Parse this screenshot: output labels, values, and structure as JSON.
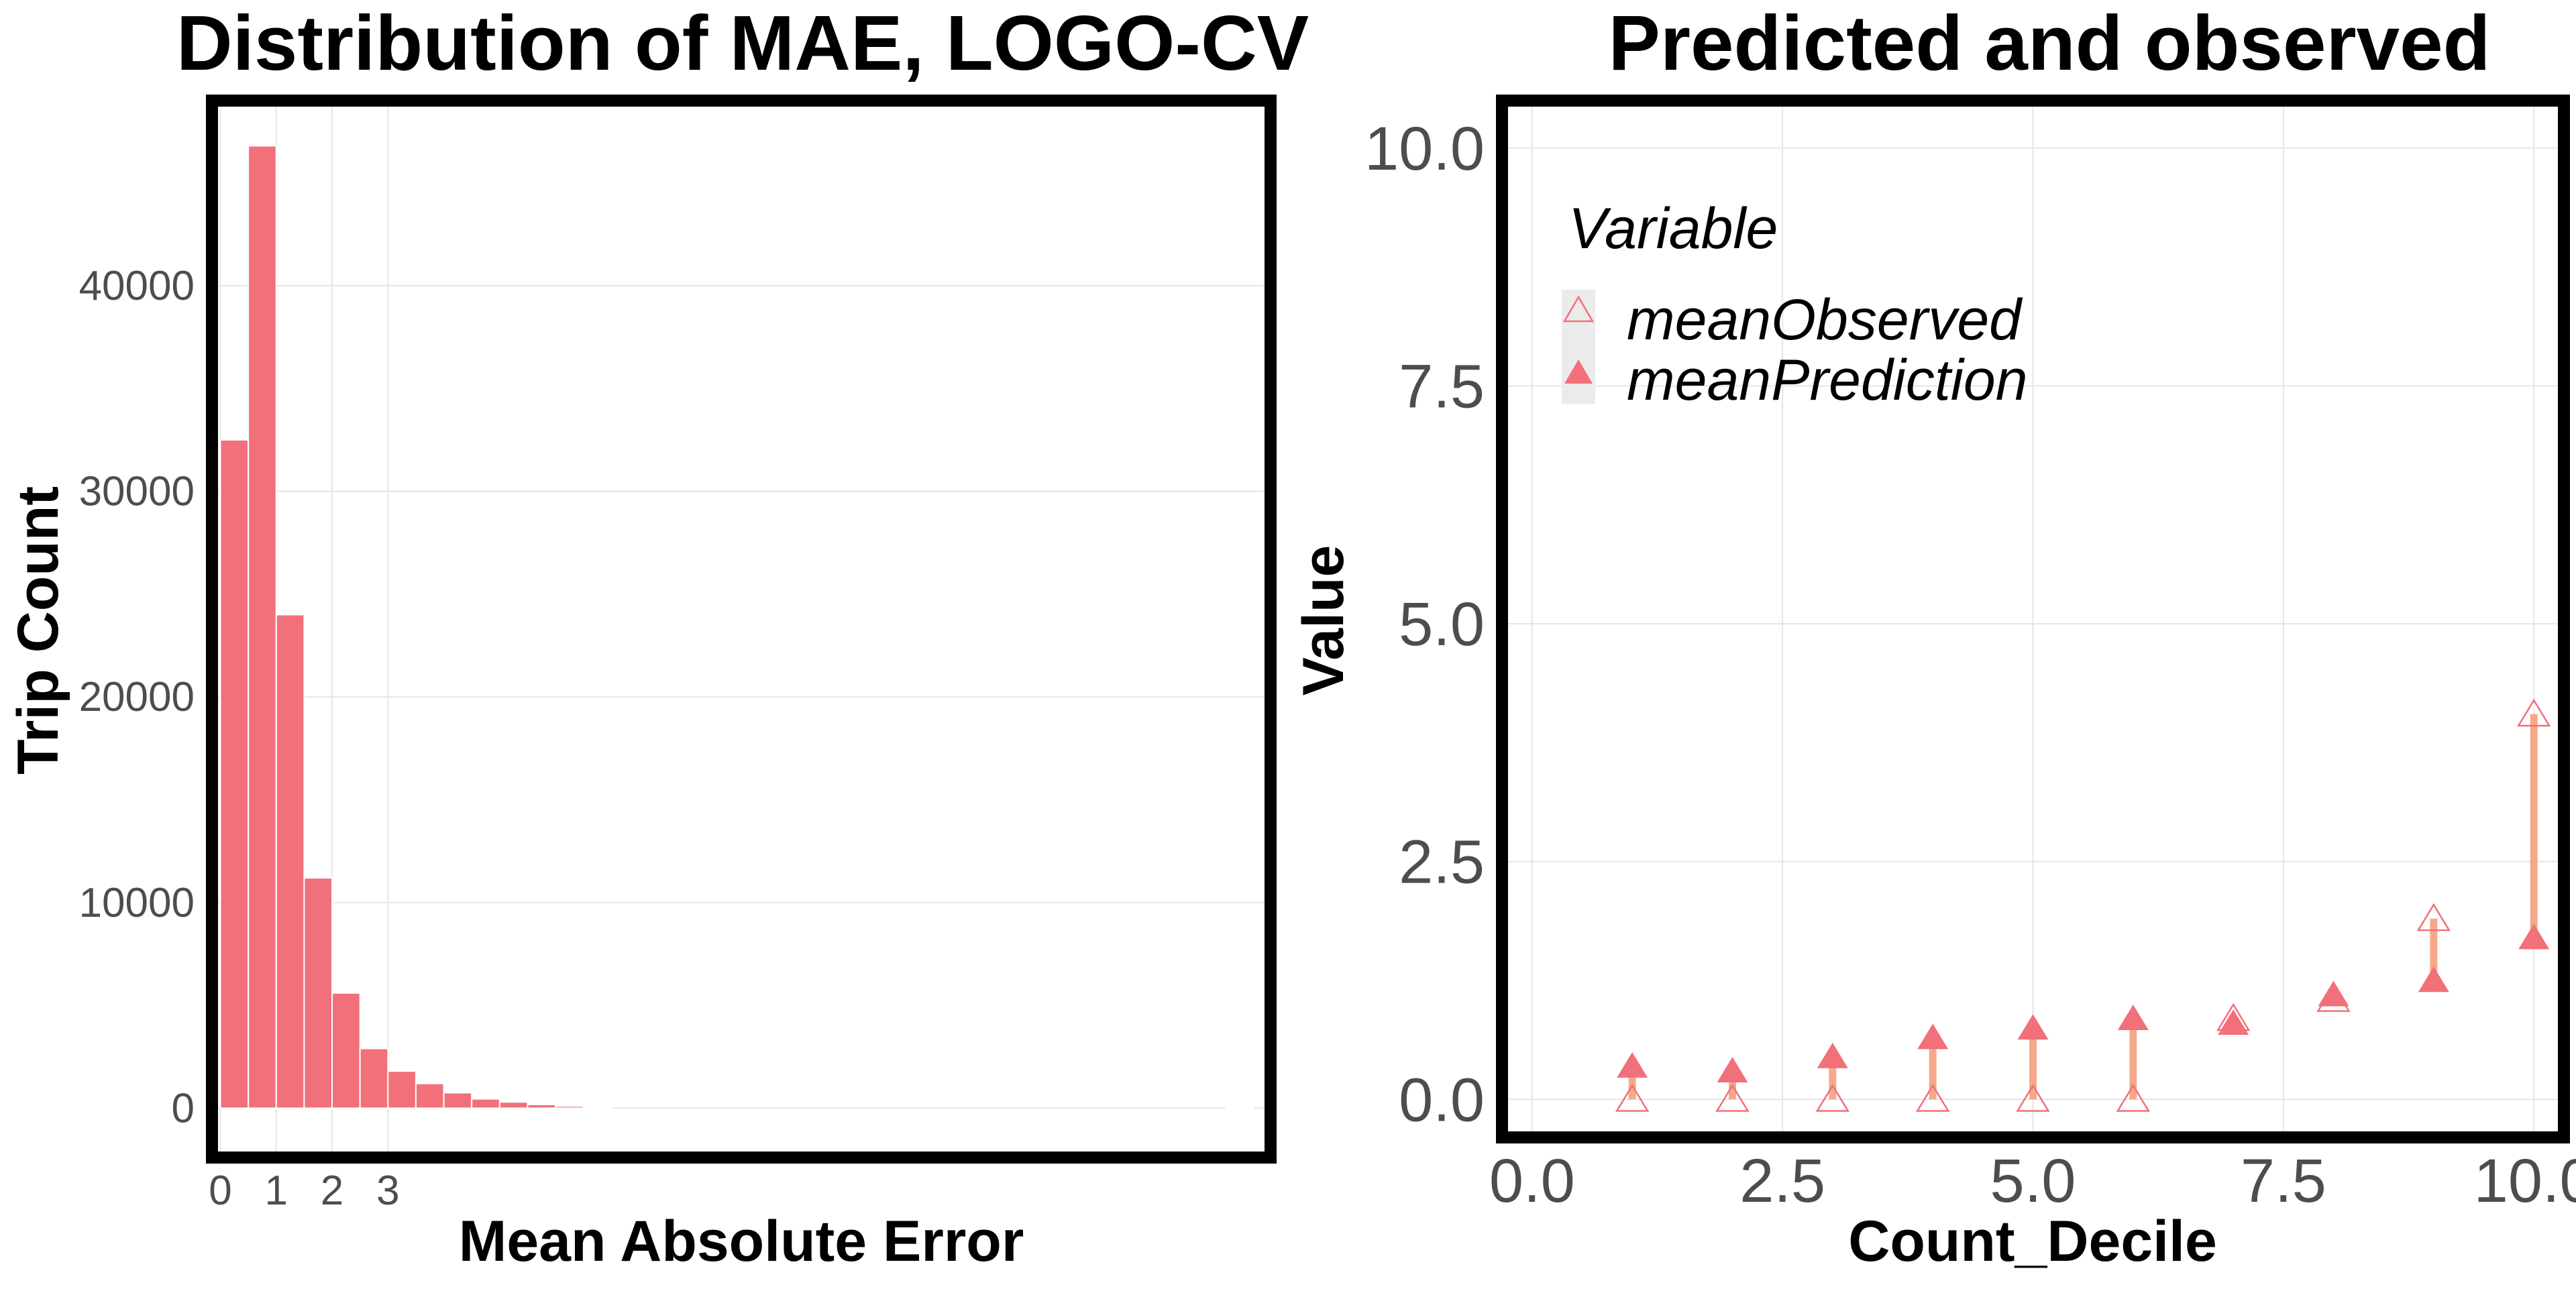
{
  "chart_data": [
    {
      "type": "bar",
      "title": "Distribution of MAE, LOGO-CV",
      "xlabel": "Mean Absolute Error",
      "ylabel": "Trip Count",
      "xlim": [
        -0.15,
        18.8
      ],
      "ylim": [
        -2400,
        49000
      ],
      "x_ticks": [
        0,
        1,
        2,
        3
      ],
      "y_ticks": [
        0,
        10000,
        20000,
        30000,
        40000
      ],
      "bin_width": 0.5,
      "bins": [
        {
          "x": 0.0,
          "count": 32500
        },
        {
          "x": 0.5,
          "count": 46800
        },
        {
          "x": 1.0,
          "count": 24000
        },
        {
          "x": 1.5,
          "count": 11200
        },
        {
          "x": 2.0,
          "count": 5600
        },
        {
          "x": 2.5,
          "count": 2900
        },
        {
          "x": 3.0,
          "count": 1800
        },
        {
          "x": 3.5,
          "count": 1200
        },
        {
          "x": 4.0,
          "count": 750
        },
        {
          "x": 4.5,
          "count": 450
        },
        {
          "x": 5.0,
          "count": 300
        },
        {
          "x": 5.5,
          "count": 180
        },
        {
          "x": 6.0,
          "count": 100
        },
        {
          "x": 6.5,
          "count": 60
        }
      ],
      "outlier_bin": {
        "x": 18.0,
        "count": 20
      },
      "color": "#F1707A",
      "grid": true
    },
    {
      "type": "scatter",
      "title": "Predicted and observed",
      "xlabel": "Count_Decile",
      "ylabel": "Value",
      "xlim": [
        -0.3,
        10.3
      ],
      "ylim": [
        -0.4,
        10.5
      ],
      "x_ticks": [
        0.0,
        2.5,
        5.0,
        7.5,
        10.0
      ],
      "y_ticks": [
        0.0,
        2.5,
        5.0,
        7.5,
        10.0
      ],
      "legend": {
        "title": "Variable",
        "placement": "top-left",
        "entries": [
          {
            "label": "meanObserved",
            "marker": "open-triangle"
          },
          {
            "label": "meanPrediction",
            "marker": "filled-triangle"
          }
        ]
      },
      "series": [
        {
          "name": "meanObserved",
          "x": [
            1,
            2,
            3,
            4,
            5,
            6,
            7,
            8,
            9,
            10
          ],
          "y": [
            0.0,
            0.0,
            0.0,
            0.0,
            0.0,
            0.0,
            0.85,
            1.05,
            1.9,
            4.05
          ]
        },
        {
          "name": "meanPrediction",
          "x": [
            1,
            2,
            3,
            4,
            5,
            6,
            7,
            8,
            9,
            10
          ],
          "y": [
            0.35,
            0.3,
            0.45,
            0.65,
            0.75,
            0.85,
            0.8,
            1.1,
            1.25,
            1.7
          ]
        }
      ],
      "point_color": "#F1707A",
      "segment_color": "#F5A98A",
      "grid": true
    }
  ]
}
